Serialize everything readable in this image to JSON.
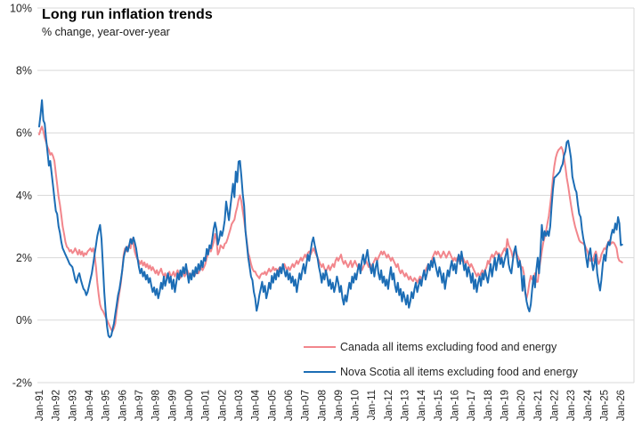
{
  "chart_data": {
    "type": "line",
    "title": "Long run inflation trends",
    "subtitle": "% change, year-over-year",
    "x_unit": "month",
    "x_start": "1991-01",
    "x_end": "2026-02",
    "x_tick_labels": [
      "Jan-91",
      "Jan-92",
      "Jan-93",
      "Jan-94",
      "Jan-95",
      "Jan-96",
      "Jan-97",
      "Jan-98",
      "Jan-99",
      "Jan-00",
      "Jan-01",
      "Jan-02",
      "Jan-03",
      "Jan-04",
      "Jan-05",
      "Jan-06",
      "Jan-07",
      "Jan-08",
      "Jan-09",
      "Jan-10",
      "Jan-11",
      "Jan-12",
      "Jan-13",
      "Jan-14",
      "Jan-15",
      "Jan-16",
      "Jan-17",
      "Jan-18",
      "Jan-19",
      "Jan-20",
      "Jan-21",
      "Jan-22",
      "Jan-23",
      "Jan-24",
      "Jan-25",
      "Jan-26"
    ],
    "y_ticks": [
      10,
      8,
      6,
      4,
      2,
      0,
      -2
    ],
    "y_tick_labels": [
      "10%",
      "8%",
      "6%",
      "4%",
      "2%",
      "0%",
      "-2%"
    ],
    "ylim": [
      -2,
      10
    ],
    "grid": "horizontal",
    "legend_position": "bottom-inside",
    "series": [
      {
        "key": "canada",
        "name": "Canada all items excluding food and energy",
        "color": "#F2868C",
        "values": [
          5.95,
          6.1,
          6.2,
          6.05,
          5.85,
          5.7,
          5.55,
          5.45,
          5.3,
          5.35,
          5.25,
          5.1,
          4.7,
          4.35,
          3.95,
          3.7,
          3.35,
          3.0,
          2.76,
          2.5,
          2.35,
          2.3,
          2.2,
          2.25,
          2.15,
          2.2,
          2.3,
          2.2,
          2.1,
          2.25,
          2.1,
          2.2,
          2.05,
          2.15,
          2.1,
          2.2,
          2.25,
          2.3,
          2.2,
          2.3,
          2.1,
          1.7,
          1.2,
          0.8,
          0.5,
          0.35,
          0.3,
          0.2,
          0.1,
          0.0,
          -0.1,
          -0.2,
          -0.3,
          -0.35,
          -0.25,
          -0.1,
          0.3,
          0.6,
          0.9,
          1.2,
          1.6,
          2.1,
          2.3,
          2.2,
          2.35,
          2.4,
          2.3,
          2.6,
          2.45,
          2.2,
          2.05,
          1.95,
          1.9,
          1.8,
          1.9,
          1.75,
          1.85,
          1.7,
          1.8,
          1.65,
          1.75,
          1.6,
          1.7,
          1.6,
          1.5,
          1.6,
          1.45,
          1.55,
          1.65,
          1.5,
          1.4,
          1.5,
          1.35,
          1.45,
          1.55,
          1.4,
          1.45,
          1.55,
          1.4,
          1.5,
          1.6,
          1.45,
          1.35,
          1.45,
          1.55,
          1.4,
          1.5,
          1.6,
          1.45,
          1.35,
          1.45,
          1.55,
          1.4,
          1.5,
          1.6,
          1.5,
          1.6,
          1.7,
          1.6,
          1.7,
          1.8,
          2.0,
          2.1,
          2.28,
          2.2,
          2.35,
          2.5,
          2.76,
          2.6,
          2.1,
          2.2,
          2.4,
          2.34,
          2.3,
          2.45,
          2.48,
          2.6,
          2.76,
          2.9,
          3.08,
          3.15,
          3.22,
          3.45,
          3.62,
          3.85,
          4.0,
          3.8,
          3.5,
          3.2,
          2.85,
          2.5,
          2.14,
          2.0,
          1.8,
          1.65,
          1.56,
          1.56,
          1.45,
          1.4,
          1.34,
          1.45,
          1.5,
          1.48,
          1.55,
          1.45,
          1.55,
          1.65,
          1.55,
          1.6,
          1.7,
          1.6,
          1.65,
          1.55,
          1.65,
          1.7,
          1.6,
          1.7,
          1.8,
          1.7,
          1.6,
          1.7,
          1.6,
          1.7,
          1.8,
          1.7,
          1.8,
          1.9,
          1.8,
          1.9,
          2.0,
          1.9,
          2.0,
          2.1,
          2.0,
          2.15,
          2.2,
          2.1,
          2.2,
          2.3,
          2.2,
          2.1,
          2.0,
          1.9,
          1.8,
          1.7,
          1.8,
          1.65,
          1.55,
          1.65,
          1.75,
          1.6,
          1.7,
          1.8,
          1.7,
          1.9,
          2.0,
          1.9,
          2.0,
          2.1,
          1.9,
          1.8,
          1.9,
          1.8,
          1.7,
          1.8,
          1.9,
          1.7,
          1.8,
          1.9,
          1.8,
          1.7,
          1.8,
          1.7,
          1.6,
          1.7,
          1.8,
          1.9,
          1.8,
          1.7,
          1.8,
          1.7,
          1.8,
          1.9,
          2.0,
          1.9,
          2.0,
          2.1,
          2.2,
          2.1,
          2.2,
          2.1,
          2.0,
          2.1,
          2.0,
          1.9,
          2.0,
          1.9,
          1.8,
          1.7,
          1.8,
          1.6,
          1.5,
          1.6,
          1.5,
          1.4,
          1.5,
          1.4,
          1.3,
          1.4,
          1.3,
          1.25,
          1.35,
          1.3,
          1.2,
          1.3,
          1.4,
          1.3,
          1.4,
          1.5,
          1.6,
          1.7,
          1.8,
          1.7,
          1.8,
          2.0,
          2.1,
          2.2,
          2.1,
          2.2,
          2.1,
          2.0,
          2.1,
          2.2,
          2.1,
          2.0,
          2.1,
          2.2,
          2.1,
          2.0,
          1.9,
          2.0,
          1.9,
          2.0,
          1.9,
          2.05,
          1.9,
          2.0,
          1.9,
          1.8,
          1.9,
          1.8,
          1.7,
          1.8,
          1.7,
          1.6,
          1.5,
          1.4,
          1.5,
          1.4,
          1.5,
          1.6,
          1.5,
          1.6,
          1.7,
          1.9,
          1.8,
          2.0,
          2.1,
          2.0,
          2.1,
          2.2,
          2.1,
          2.15,
          2.0,
          2.1,
          2.2,
          2.3,
          2.2,
          2.6,
          2.4,
          2.3,
          2.2,
          2.0,
          2.1,
          2.28,
          2.1,
          2.0,
          1.9,
          1.7,
          1.7,
          1.5,
          0.85,
          0.7,
          0.9,
          1.2,
          1.42,
          1.3,
          1.34,
          1.5,
          1.23,
          1.23,
          1.6,
          1.9,
          2.2,
          2.48,
          2.65,
          2.85,
          3.1,
          3.33,
          3.7,
          4.07,
          4.56,
          4.93,
          5.2,
          5.35,
          5.45,
          5.5,
          5.55,
          5.45,
          5.2,
          4.9,
          4.56,
          4.3,
          4.0,
          3.7,
          3.42,
          3.2,
          3.0,
          2.85,
          2.7,
          2.56,
          2.5,
          2.48,
          2.45,
          2.4,
          2.3,
          2.2,
          2.0,
          1.9,
          2.0,
          1.9,
          2.1,
          2.2,
          2.0,
          1.8,
          1.9,
          2.1,
          2.2,
          2.3,
          2.28,
          2.4,
          2.5,
          2.56,
          2.45,
          2.5,
          2.48,
          2.4,
          2.3,
          2.0,
          1.9,
          1.88,
          1.85
        ]
      },
      {
        "key": "nova-scotia",
        "name": "Nova Scotia all items excluding food and energy",
        "color": "#1C6DB5",
        "values": [
          6.2,
          6.6,
          7.05,
          6.4,
          6.3,
          5.8,
          5.4,
          4.95,
          5.1,
          4.7,
          4.3,
          3.9,
          3.5,
          3.4,
          3.0,
          2.8,
          2.5,
          2.3,
          2.2,
          2.1,
          2.0,
          1.9,
          1.8,
          1.75,
          1.7,
          1.5,
          1.3,
          1.2,
          1.4,
          1.5,
          1.3,
          1.15,
          1.0,
          0.95,
          0.8,
          0.9,
          1.1,
          1.3,
          1.5,
          1.8,
          2.1,
          2.4,
          2.7,
          2.9,
          3.05,
          2.6,
          1.8,
          0.9,
          0.3,
          -0.2,
          -0.5,
          -0.55,
          -0.5,
          -0.3,
          -0.1,
          0.2,
          0.5,
          0.8,
          1.0,
          1.3,
          1.6,
          2.0,
          2.2,
          2.35,
          2.2,
          2.4,
          2.6,
          2.45,
          2.65,
          2.5,
          2.3,
          2.0,
          1.7,
          1.5,
          1.65,
          1.4,
          1.55,
          1.3,
          1.45,
          1.2,
          1.35,
          1.1,
          0.9,
          1.05,
          0.8,
          1.0,
          0.7,
          0.9,
          1.2,
          1.0,
          1.4,
          1.1,
          1.3,
          1.5,
          1.2,
          1.4,
          1.0,
          1.3,
          0.9,
          1.2,
          1.5,
          1.3,
          1.6,
          1.4,
          1.7,
          1.5,
          1.8,
          1.5,
          1.2,
          1.5,
          1.3,
          1.6,
          1.4,
          1.7,
          1.5,
          1.8,
          1.6,
          1.9,
          1.7,
          2.0,
          1.9,
          2.28,
          2.1,
          2.4,
          2.3,
          2.6,
          2.93,
          3.13,
          2.9,
          2.42,
          2.6,
          2.85,
          2.7,
          2.9,
          3.2,
          3.8,
          3.5,
          3.2,
          3.6,
          4.0,
          4.37,
          3.94,
          4.76,
          4.42,
          5.08,
          5.1,
          4.6,
          4.05,
          3.65,
          2.85,
          2.42,
          2.0,
          1.7,
          1.4,
          1.28,
          0.9,
          0.7,
          0.3,
          0.5,
          0.8,
          1.0,
          1.23,
          0.9,
          1.1,
          0.7,
          0.9,
          1.2,
          1.0,
          1.42,
          1.2,
          1.5,
          1.3,
          1.6,
          1.4,
          1.7,
          1.5,
          1.8,
          1.6,
          1.4,
          1.6,
          1.3,
          1.5,
          1.2,
          1.4,
          1.1,
          1.3,
          0.9,
          1.2,
          1.5,
          1.3,
          1.6,
          1.8,
          1.5,
          1.8,
          2.1,
          1.9,
          2.2,
          2.5,
          2.65,
          2.4,
          2.2,
          2.0,
          1.7,
          1.5,
          1.2,
          1.5,
          1.3,
          1.6,
          1.4,
          1.1,
          1.3,
          1.0,
          1.2,
          0.9,
          1.1,
          1.4,
          1.2,
          0.9,
          1.1,
          0.7,
          0.5,
          0.8,
          0.6,
          0.9,
          1.2,
          1.0,
          1.4,
          1.2,
          1.5,
          1.3,
          1.6,
          1.8,
          1.5,
          1.9,
          2.1,
          1.8,
          2.0,
          2.25,
          1.9,
          1.7,
          1.5,
          1.8,
          1.4,
          1.7,
          1.9,
          1.5,
          1.3,
          1.6,
          1.2,
          1.4,
          1.1,
          1.3,
          1.0,
          1.4,
          1.7,
          1.3,
          1.5,
          1.1,
          0.9,
          1.2,
          0.8,
          1.0,
          0.6,
          0.9,
          0.7,
          0.5,
          0.8,
          0.4,
          0.6,
          0.9,
          0.7,
          1.0,
          1.2,
          0.9,
          1.1,
          1.3,
          1.1,
          1.4,
          1.6,
          1.3,
          1.5,
          1.8,
          1.6,
          1.9,
          1.7,
          2.0,
          1.8,
          1.6,
          1.4,
          1.7,
          1.5,
          1.2,
          1.5,
          1.0,
          1.3,
          1.6,
          1.4,
          1.7,
          1.9,
          1.6,
          1.8,
          1.5,
          1.9,
          2.1,
          1.8,
          2.2,
          1.9,
          1.6,
          1.8,
          1.4,
          1.7,
          1.5,
          1.2,
          1.5,
          1.0,
          1.3,
          0.9,
          1.2,
          1.4,
          1.1,
          1.5,
          1.3,
          1.6,
          1.4,
          1.2,
          1.5,
          1.8,
          1.4,
          1.7,
          2.0,
          1.6,
          1.9,
          2.1,
          1.8,
          2.0,
          1.7,
          1.9,
          2.1,
          2.28,
          1.8,
          1.6,
          1.5,
          1.9,
          2.2,
          2.37,
          2.0,
          1.7,
          1.9,
          1.6,
          0.94,
          1.42,
          0.9,
          0.6,
          0.4,
          0.28,
          0.5,
          1.0,
          1.42,
          1.05,
          1.6,
          2.0,
          1.5,
          2.2,
          3.05,
          2.56,
          2.85,
          2.7,
          2.85,
          2.7,
          3.0,
          3.62,
          4.19,
          4.56,
          4.6,
          4.65,
          4.7,
          4.76,
          4.9,
          5.0,
          5.27,
          5.41,
          5.7,
          5.75,
          5.5,
          5.2,
          4.6,
          4.4,
          4.2,
          4.1,
          3.7,
          3.4,
          3.3,
          2.9,
          2.6,
          2.4,
          2.0,
          1.7,
          2.1,
          2.3,
          1.9,
          1.6,
          1.8,
          2.1,
          1.5,
          1.2,
          0.95,
          1.3,
          1.8,
          2.1,
          1.9,
          2.3,
          2.5,
          2.4,
          2.7,
          2.9,
          2.8,
          3.1,
          2.9,
          3.3,
          3.1,
          2.4,
          2.42
        ]
      }
    ]
  },
  "colors": {
    "gridline": "#D9D9D9",
    "plot_border": "#D9D9D9",
    "axis_text": "#262626",
    "title_text": "#000000"
  }
}
